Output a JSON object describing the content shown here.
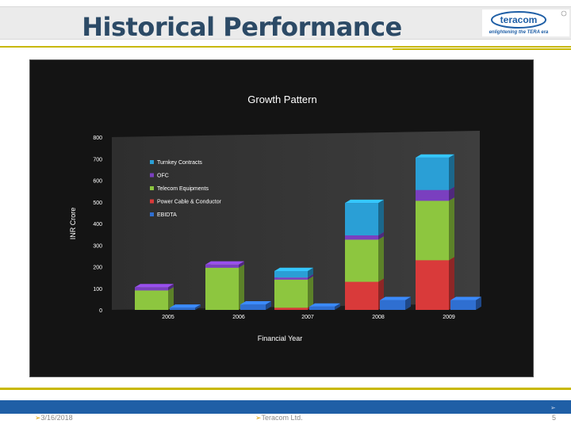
{
  "slide": {
    "title": "Historical Performance",
    "footer_date": "3/16/2018",
    "footer_company": "Teracom Ltd.",
    "page_number": "5",
    "footer_arrow": "➢"
  },
  "logo": {
    "name": "teracom",
    "tagline": "enlightening the TERA era"
  },
  "chart_data": {
    "type": "bar",
    "stacked": true,
    "title": "Growth Pattern",
    "xlabel": "Financial Year",
    "ylabel": "INR Crore",
    "ylim": [
      0,
      800
    ],
    "yticks": [
      0,
      100,
      200,
      300,
      400,
      500,
      600,
      700,
      800
    ],
    "categories": [
      "2005",
      "2006",
      "2007",
      "2008",
      "2009"
    ],
    "series": [
      {
        "name": "Power Cable & Conductor",
        "color": "#d93a3a",
        "values": [
          0,
          0,
          10,
          130,
          230
        ]
      },
      {
        "name": "Telecom Equipments",
        "color": "#8dc63f",
        "values": [
          90,
          195,
          130,
          195,
          275
        ]
      },
      {
        "name": "OFC",
        "color": "#7a3fbf",
        "values": [
          15,
          15,
          10,
          20,
          50
        ]
      },
      {
        "name": "Turnkey Contracts",
        "color": "#2a9fd6",
        "values": [
          0,
          0,
          30,
          150,
          150
        ]
      }
    ],
    "separate_series": {
      "name": "EBIDTA",
      "color": "#2f6fd1",
      "values": [
        10,
        25,
        15,
        45,
        45
      ]
    },
    "legend": [
      "Turnkey Contracts",
      "OFC",
      "Telecom Equipments",
      "Power Cable & Conductor",
      "EBIDTA"
    ],
    "legend_colors": [
      "#2a9fd6",
      "#7a3fbf",
      "#8dc63f",
      "#d93a3a",
      "#2f6fd1"
    ],
    "legend_position": "top-left"
  }
}
